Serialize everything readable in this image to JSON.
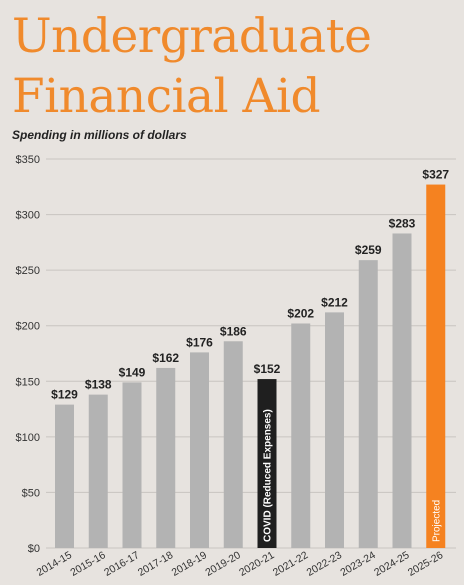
{
  "title_lines": [
    "Undergraduate",
    "Financial Aid"
  ],
  "subtitle": "Spending in millions of dollars",
  "colors": {
    "background": "#e7e3df",
    "title": "#f08a2c",
    "bar_default": "#b3b3b3",
    "bar_covid": "#1f1f1f",
    "bar_projected": "#f58220",
    "gridline": "#c8c4c0"
  },
  "chart_data": {
    "type": "bar",
    "title": "Undergraduate Financial Aid",
    "subtitle": "Spending in millions of dollars",
    "xlabel": "",
    "ylabel": "",
    "ylim": [
      0,
      350
    ],
    "yticks": [
      0,
      50,
      100,
      150,
      200,
      250,
      300,
      350
    ],
    "ytick_labels": [
      "$0",
      "$50",
      "$100",
      "$150",
      "$200",
      "$250",
      "$300",
      "$350"
    ],
    "grid": true,
    "categories": [
      "2014-15",
      "2015-16",
      "2016-17",
      "2017-18",
      "2018-19",
      "2019-20",
      "2020-21",
      "2021-22",
      "2022-23",
      "2023-24",
      "2024-25",
      "2025-26"
    ],
    "values": [
      129,
      138,
      149,
      162,
      176,
      186,
      152,
      202,
      212,
      259,
      283,
      327
    ],
    "value_labels": [
      "$129",
      "$138",
      "$149",
      "$162",
      "$176",
      "$186",
      "$152",
      "$202",
      "$212",
      "$259",
      "$283",
      "$327"
    ],
    "bar_styles": [
      "default",
      "default",
      "default",
      "default",
      "default",
      "default",
      "covid",
      "default",
      "default",
      "default",
      "default",
      "projected"
    ],
    "annotations": [
      {
        "category": "2020-21",
        "text": "COVID (Reduced Expenses)"
      },
      {
        "category": "2025-26",
        "text": "Projected"
      }
    ]
  }
}
